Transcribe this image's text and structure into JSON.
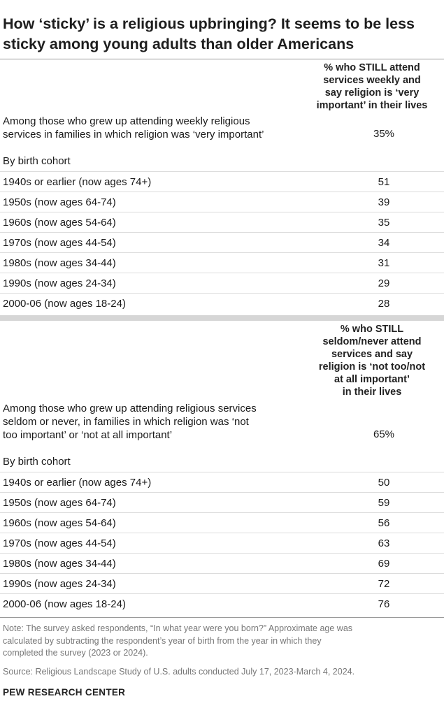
{
  "title": "How ‘sticky’ is a religious upbringing? It seems to be less sticky among young adults than older Americans",
  "section1": {
    "column_header_lines": [
      "% who STILL attend",
      "services weekly and",
      "say religion is ‘very",
      "important’ in their lives"
    ],
    "intro_lines": [
      "Among those who grew up attending weekly religious",
      "services in families in which religion was ‘very important’"
    ],
    "intro_value": "35%",
    "cohort_label": "By birth cohort",
    "rows": [
      {
        "label": "1940s or earlier (now ages 74+)",
        "value": "51"
      },
      {
        "label": "1950s (now ages 64-74)",
        "value": "39"
      },
      {
        "label": "1960s (now ages 54-64)",
        "value": "35"
      },
      {
        "label": "1970s (now ages 44-54)",
        "value": "34"
      },
      {
        "label": "1980s (now ages 34-44)",
        "value": "31"
      },
      {
        "label": "1990s (now ages 24-34)",
        "value": "29"
      },
      {
        "label": "2000-06 (now ages 18-24)",
        "value": "28"
      }
    ]
  },
  "section2": {
    "column_header_lines": [
      "% who STILL",
      "seldom/never attend",
      "services and say",
      "religion is ‘not too/not",
      "at all important’",
      "in their lives"
    ],
    "intro_lines": [
      "Among those who grew up attending religious services",
      "seldom or never, in families in which religion was ‘not",
      "too important’ or ‘not at all important’"
    ],
    "intro_value": "65%",
    "cohort_label": "By birth cohort",
    "rows": [
      {
        "label": "1940s or earlier (now ages 74+)",
        "value": "50"
      },
      {
        "label": "1950s (now ages 64-74)",
        "value": "59"
      },
      {
        "label": "1960s (now ages 54-64)",
        "value": "56"
      },
      {
        "label": "1970s (now ages 44-54)",
        "value": "63"
      },
      {
        "label": "1980s (now ages 34-44)",
        "value": "69"
      },
      {
        "label": "1990s (now ages 24-34)",
        "value": "72"
      },
      {
        "label": "2000-06 (now ages 18-24)",
        "value": "76"
      }
    ]
  },
  "note_lines": [
    "Note: The survey asked respondents, “In what year were you born?” Approximate age was",
    "calculated by subtracting the respondent’s year of birth from the year in which they",
    "completed the survey (2023 or 2024)."
  ],
  "source": "Source: Religious Landscape Study of U.S. adults conducted July 17, 2023-March 4, 2024.",
  "brand": "PEW RESEARCH CENTER",
  "chart_data": {
    "type": "table",
    "title": "How ‘sticky’ is a religious upbringing? It seems to be less sticky among young adults than older Americans",
    "categories": [
      "1940s or earlier (now ages 74+)",
      "1950s (now ages 64-74)",
      "1960s (now ages 54-64)",
      "1970s (now ages 44-54)",
      "1980s (now ages 34-44)",
      "1990s (now ages 24-34)",
      "2000-06 (now ages 18-24)"
    ],
    "series": [
      {
        "name": "% who STILL attend services weekly and say religion is ‘very important’ in their lives",
        "overall": 35,
        "values": [
          51,
          39,
          35,
          34,
          31,
          29,
          28
        ]
      },
      {
        "name": "% who STILL seldom/never attend services and say religion is ‘not too/not at all important’ in their lives",
        "overall": 65,
        "values": [
          50,
          59,
          56,
          63,
          69,
          72,
          76
        ]
      }
    ]
  }
}
